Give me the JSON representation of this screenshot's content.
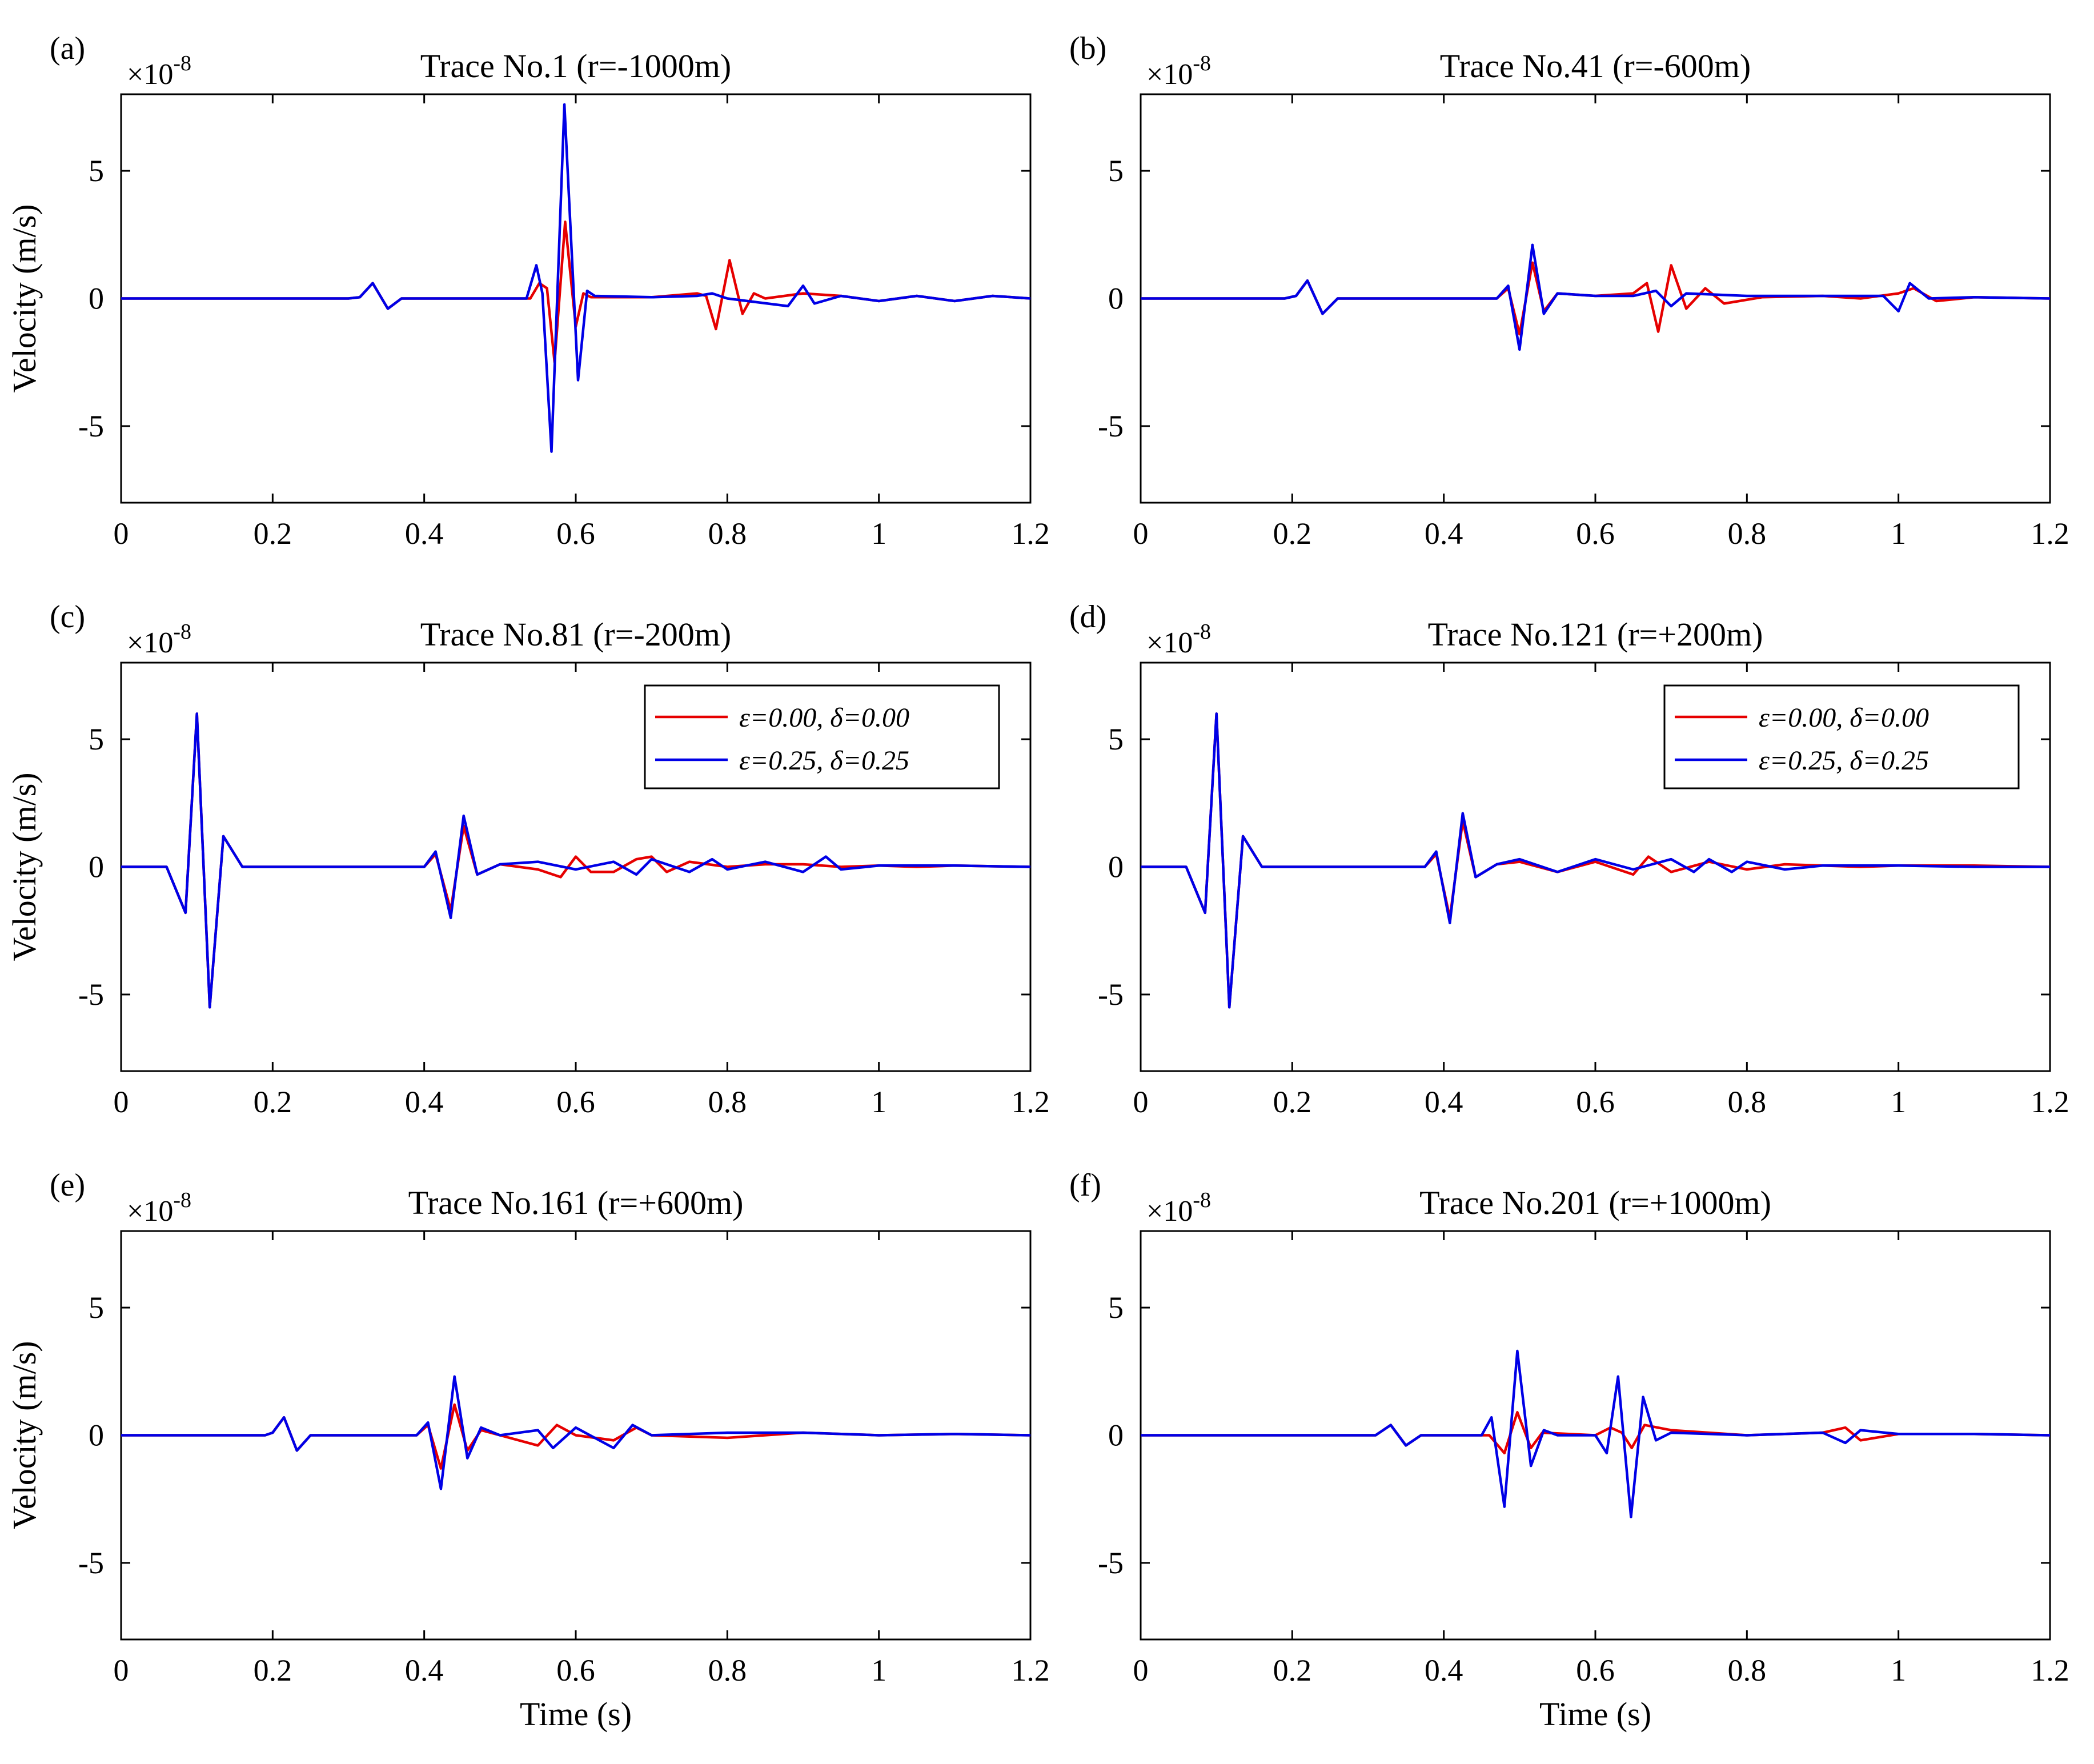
{
  "chart_data": [
    {
      "type": "line",
      "panel_label": "(a)",
      "title": "Trace No.1 (r=-1000m)",
      "xlabel": "",
      "ylabel": "Velocity (m/s)",
      "y_exponent": "×10-8",
      "xlim": [
        0,
        1.2
      ],
      "ylim": [
        -8,
        8
      ],
      "xticks": [
        "0",
        "0.2",
        "0.4",
        "0.6",
        "0.8",
        "1",
        "1.2"
      ],
      "yticks": [
        "5",
        "0",
        "-5"
      ],
      "legend": null,
      "series": [
        {
          "name": "ε=0.00, δ=0.00",
          "color": "#e60000",
          "x": [
            0,
            0.3,
            0.315,
            0.332,
            0.352,
            0.37,
            0.54,
            0.552,
            0.562,
            0.572,
            0.586,
            0.6,
            0.61,
            0.62,
            0.7,
            0.76,
            0.772,
            0.785,
            0.803,
            0.82,
            0.835,
            0.85,
            0.9,
            0.95,
            1.0,
            1.05,
            1.1,
            1.15,
            1.2
          ],
          "y": [
            0,
            0,
            0.05,
            0.6,
            -0.4,
            0,
            0,
            0.6,
            0.4,
            -2.5,
            3.0,
            -1.1,
            0.2,
            0.05,
            0.05,
            0.2,
            0.1,
            -1.2,
            1.5,
            -0.6,
            0.2,
            0,
            0.2,
            0.1,
            -0.1,
            0.1,
            -0.1,
            0.1,
            0
          ]
        },
        {
          "name": "ε=0.25, δ=0.25",
          "color": "#0000e6",
          "x": [
            0,
            0.3,
            0.315,
            0.332,
            0.352,
            0.37,
            0.535,
            0.548,
            0.556,
            0.568,
            0.585,
            0.603,
            0.615,
            0.625,
            0.7,
            0.76,
            0.78,
            0.8,
            0.88,
            0.9,
            0.915,
            0.95,
            1.0,
            1.05,
            1.1,
            1.15,
            1.2
          ],
          "y": [
            0,
            0,
            0.05,
            0.6,
            -0.4,
            0,
            0,
            1.3,
            0.2,
            -6.0,
            7.6,
            -3.2,
            0.3,
            0.1,
            0.05,
            0.1,
            0.2,
            0,
            -0.3,
            0.5,
            -0.2,
            0.1,
            -0.1,
            0.1,
            -0.1,
            0.1,
            0
          ]
        }
      ]
    },
    {
      "type": "line",
      "panel_label": "(b)",
      "title": "Trace No.41 (r=-600m)",
      "xlabel": "",
      "ylabel": "",
      "y_exponent": "×10-8",
      "xlim": [
        0,
        1.2
      ],
      "ylim": [
        -8,
        8
      ],
      "xticks": [
        "0",
        "0.2",
        "0.4",
        "0.6",
        "0.8",
        "1",
        "1.2"
      ],
      "yticks": [
        "5",
        "0",
        "-5"
      ],
      "legend": null,
      "series": [
        {
          "name": "ε=0.00, δ=0.00",
          "color": "#e60000",
          "x": [
            0,
            0.19,
            0.205,
            0.22,
            0.24,
            0.26,
            0.47,
            0.485,
            0.5,
            0.517,
            0.532,
            0.55,
            0.6,
            0.65,
            0.668,
            0.683,
            0.7,
            0.72,
            0.745,
            0.77,
            0.82,
            0.9,
            0.95,
            1.0,
            1.02,
            1.05,
            1.1,
            1.2
          ],
          "y": [
            0,
            0,
            0.1,
            0.7,
            -0.6,
            0,
            0,
            0.4,
            -1.4,
            1.4,
            -0.5,
            0.2,
            0.1,
            0.2,
            0.6,
            -1.3,
            1.3,
            -0.4,
            0.4,
            -0.2,
            0.05,
            0.1,
            0,
            0.2,
            0.4,
            -0.1,
            0.05,
            0
          ]
        },
        {
          "name": "ε=0.25, δ=0.25",
          "color": "#0000e6",
          "x": [
            0,
            0.19,
            0.205,
            0.22,
            0.24,
            0.26,
            0.47,
            0.485,
            0.5,
            0.517,
            0.532,
            0.55,
            0.6,
            0.65,
            0.68,
            0.7,
            0.72,
            0.8,
            0.9,
            0.98,
            1.0,
            1.015,
            1.04,
            1.1,
            1.2
          ],
          "y": [
            0,
            0,
            0.1,
            0.7,
            -0.6,
            0,
            0,
            0.5,
            -2.0,
            2.1,
            -0.6,
            0.2,
            0.1,
            0.1,
            0.3,
            -0.3,
            0.2,
            0.1,
            0.1,
            0.1,
            -0.5,
            0.6,
            0,
            0.05,
            0
          ]
        }
      ]
    },
    {
      "type": "line",
      "panel_label": "(c)",
      "title": "Trace No.81 (r=-200m)",
      "xlabel": "",
      "ylabel": "Velocity (m/s)",
      "y_exponent": "×10-8",
      "xlim": [
        0,
        1.2
      ],
      "ylim": [
        -8,
        8
      ],
      "xticks": [
        "0",
        "0.2",
        "0.4",
        "0.6",
        "0.8",
        "1",
        "1.2"
      ],
      "yticks": [
        "5",
        "0",
        "-5"
      ],
      "legend": {
        "placement": "top-right"
      },
      "series": [
        {
          "name": "ε=0.00, δ=0.00",
          "color": "#e60000",
          "x": [
            0,
            0.06,
            0.085,
            0.1,
            0.117,
            0.135,
            0.16,
            0.2,
            0.4,
            0.415,
            0.435,
            0.452,
            0.47,
            0.5,
            0.55,
            0.58,
            0.6,
            0.62,
            0.65,
            0.68,
            0.7,
            0.72,
            0.75,
            0.8,
            0.85,
            0.9,
            0.95,
            1.0,
            1.05,
            1.1,
            1.2
          ],
          "y": [
            0,
            0,
            -1.8,
            6.0,
            -5.5,
            1.2,
            0,
            0,
            0,
            0.5,
            -1.7,
            1.6,
            -0.3,
            0.1,
            -0.1,
            -0.4,
            0.4,
            -0.2,
            -0.2,
            0.3,
            0.4,
            -0.2,
            0.2,
            0,
            0.1,
            0.1,
            0,
            0.05,
            0,
            0.05,
            0
          ]
        },
        {
          "name": "ε=0.25, δ=0.25",
          "color": "#0000e6",
          "x": [
            0,
            0.06,
            0.085,
            0.1,
            0.117,
            0.135,
            0.16,
            0.2,
            0.4,
            0.415,
            0.435,
            0.452,
            0.47,
            0.5,
            0.55,
            0.6,
            0.65,
            0.68,
            0.7,
            0.75,
            0.78,
            0.8,
            0.85,
            0.9,
            0.93,
            0.95,
            1.0,
            1.1,
            1.2
          ],
          "y": [
            0,
            0,
            -1.8,
            6.0,
            -5.5,
            1.2,
            0,
            0,
            0,
            0.6,
            -2.0,
            2.0,
            -0.3,
            0.1,
            0.2,
            -0.1,
            0.2,
            -0.3,
            0.3,
            -0.2,
            0.3,
            -0.1,
            0.2,
            -0.2,
            0.4,
            -0.1,
            0.05,
            0.05,
            0
          ]
        }
      ]
    },
    {
      "type": "line",
      "panel_label": "(d)",
      "title": "Trace No.121 (r=+200m)",
      "xlabel": "",
      "ylabel": "",
      "y_exponent": "×10-8",
      "xlim": [
        0,
        1.2
      ],
      "ylim": [
        -8,
        8
      ],
      "xticks": [
        "0",
        "0.2",
        "0.4",
        "0.6",
        "0.8",
        "1",
        "1.2"
      ],
      "yticks": [
        "5",
        "0",
        "-5"
      ],
      "legend": {
        "placement": "top-right"
      },
      "series": [
        {
          "name": "ε=0.00, δ=0.00",
          "color": "#e60000",
          "x": [
            0,
            0.06,
            0.085,
            0.1,
            0.117,
            0.135,
            0.16,
            0.2,
            0.375,
            0.39,
            0.408,
            0.425,
            0.442,
            0.47,
            0.5,
            0.55,
            0.6,
            0.65,
            0.67,
            0.7,
            0.75,
            0.8,
            0.85,
            0.9,
            0.95,
            1.0,
            1.1,
            1.2
          ],
          "y": [
            0,
            0,
            -1.8,
            6.0,
            -5.5,
            1.2,
            0,
            0,
            0,
            0.5,
            -2.0,
            1.8,
            -0.4,
            0.1,
            0.2,
            -0.2,
            0.2,
            -0.3,
            0.4,
            -0.2,
            0.2,
            -0.1,
            0.1,
            0.05,
            0,
            0.05,
            0.05,
            0
          ]
        },
        {
          "name": "ε=0.25, δ=0.25",
          "color": "#0000e6",
          "x": [
            0,
            0.06,
            0.085,
            0.1,
            0.117,
            0.135,
            0.16,
            0.2,
            0.375,
            0.39,
            0.408,
            0.425,
            0.442,
            0.47,
            0.5,
            0.55,
            0.6,
            0.65,
            0.7,
            0.73,
            0.75,
            0.78,
            0.8,
            0.85,
            0.9,
            1.0,
            1.1,
            1.2
          ],
          "y": [
            0,
            0,
            -1.8,
            6.0,
            -5.5,
            1.2,
            0,
            0,
            0,
            0.6,
            -2.2,
            2.1,
            -0.4,
            0.1,
            0.3,
            -0.2,
            0.3,
            -0.1,
            0.3,
            -0.2,
            0.3,
            -0.2,
            0.2,
            -0.1,
            0.05,
            0.05,
            0,
            0
          ]
        }
      ]
    },
    {
      "type": "line",
      "panel_label": "(e)",
      "title": "Trace No.161 (r=+600m)",
      "xlabel": "Time (s)",
      "ylabel": "Velocity (m/s)",
      "y_exponent": "×10-8",
      "xlim": [
        0,
        1.2
      ],
      "ylim": [
        -8,
        8
      ],
      "xticks": [
        "0",
        "0.2",
        "0.4",
        "0.6",
        "0.8",
        "1",
        "1.2"
      ],
      "yticks": [
        "5",
        "0",
        "-5"
      ],
      "legend": null,
      "series": [
        {
          "name": "ε=0.00, δ=0.00",
          "color": "#e60000",
          "x": [
            0,
            0.19,
            0.2,
            0.215,
            0.232,
            0.25,
            0.39,
            0.405,
            0.422,
            0.44,
            0.457,
            0.475,
            0.5,
            0.55,
            0.575,
            0.6,
            0.65,
            0.68,
            0.7,
            0.8,
            0.9,
            1.0,
            1.1,
            1.2
          ],
          "y": [
            0,
            0,
            0.1,
            0.7,
            -0.6,
            0,
            0,
            0.4,
            -1.3,
            1.2,
            -0.6,
            0.2,
            0,
            -0.4,
            0.4,
            0,
            -0.2,
            0.3,
            0,
            -0.1,
            0.1,
            0,
            0.05,
            0
          ]
        },
        {
          "name": "ε=0.25, δ=0.25",
          "color": "#0000e6",
          "x": [
            0,
            0.19,
            0.2,
            0.215,
            0.232,
            0.25,
            0.39,
            0.405,
            0.422,
            0.44,
            0.457,
            0.475,
            0.5,
            0.55,
            0.57,
            0.6,
            0.65,
            0.675,
            0.7,
            0.8,
            0.9,
            1.0,
            1.1,
            1.2
          ],
          "y": [
            0,
            0,
            0.1,
            0.7,
            -0.6,
            0,
            0,
            0.5,
            -2.1,
            2.3,
            -0.9,
            0.3,
            0,
            0.2,
            -0.5,
            0.3,
            -0.5,
            0.4,
            0,
            0.1,
            0.1,
            0,
            0.05,
            0
          ]
        }
      ]
    },
    {
      "type": "line",
      "panel_label": "(f)",
      "title": "Trace No.201 (r=+1000m)",
      "xlabel": "Time (s)",
      "ylabel": "",
      "y_exponent": "×10-8",
      "xlim": [
        0,
        1.2
      ],
      "ylim": [
        -8,
        8
      ],
      "xticks": [
        "0",
        "0.2",
        "0.4",
        "0.6",
        "0.8",
        "1",
        "1.2"
      ],
      "yticks": [
        "5",
        "0",
        "-5"
      ],
      "legend": null,
      "series": [
        {
          "name": "ε=0.00, δ=0.00",
          "color": "#e60000",
          "x": [
            0,
            0.31,
            0.33,
            0.35,
            0.37,
            0.46,
            0.48,
            0.497,
            0.515,
            0.53,
            0.6,
            0.62,
            0.635,
            0.648,
            0.665,
            0.7,
            0.8,
            0.9,
            0.93,
            0.95,
            1.0,
            1.1,
            1.2
          ],
          "y": [
            0,
            0,
            0.4,
            -0.4,
            0,
            0,
            -0.7,
            0.9,
            -0.5,
            0.1,
            0,
            0.3,
            0.1,
            -0.5,
            0.4,
            0.2,
            0,
            0.1,
            0.3,
            -0.2,
            0.05,
            0.05,
            0
          ]
        },
        {
          "name": "ε=0.25, δ=0.25",
          "color": "#0000e6",
          "x": [
            0,
            0.31,
            0.33,
            0.35,
            0.37,
            0.45,
            0.463,
            0.48,
            0.497,
            0.515,
            0.532,
            0.55,
            0.6,
            0.615,
            0.63,
            0.647,
            0.663,
            0.68,
            0.7,
            0.8,
            0.9,
            0.93,
            0.95,
            1.0,
            1.1,
            1.2
          ],
          "y": [
            0,
            0,
            0.4,
            -0.4,
            0,
            0,
            0.7,
            -2.8,
            3.3,
            -1.2,
            0.2,
            0,
            0,
            -0.7,
            2.3,
            -3.2,
            1.5,
            -0.2,
            0.1,
            0,
            0.1,
            -0.3,
            0.2,
            0.05,
            0.05,
            0
          ]
        }
      ]
    }
  ]
}
